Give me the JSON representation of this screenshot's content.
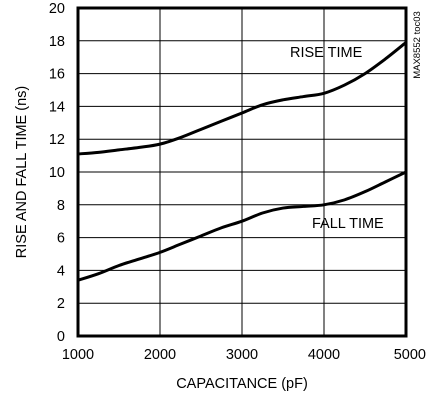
{
  "chart_data": {
    "type": "line",
    "xlabel": "CAPACITANCE (pF)",
    "ylabel": "RISE AND FALL TIME (ns)",
    "xlim": [
      1000,
      5000
    ],
    "ylim": [
      0,
      20
    ],
    "x_ticks": [
      1000,
      2000,
      3000,
      4000,
      5000
    ],
    "y_ticks": [
      0,
      2,
      4,
      6,
      8,
      10,
      12,
      14,
      16,
      18,
      20
    ],
    "grid": true,
    "side_tag": "MAX8552 toc03",
    "series": [
      {
        "name": "RISE TIME",
        "x": [
          1000,
          1250,
          1500,
          1750,
          2000,
          2250,
          2500,
          2750,
          3000,
          3250,
          3500,
          3750,
          4000,
          4250,
          4500,
          4750,
          5000
        ],
        "y": [
          11.1,
          11.2,
          11.35,
          11.5,
          11.7,
          12.1,
          12.6,
          13.1,
          13.6,
          14.1,
          14.4,
          14.6,
          14.8,
          15.3,
          16.0,
          16.9,
          17.9
        ]
      },
      {
        "name": "FALL TIME",
        "x": [
          1000,
          1250,
          1500,
          1750,
          2000,
          2250,
          2500,
          2750,
          3000,
          3250,
          3500,
          3750,
          4000,
          4250,
          4500,
          4750,
          5000
        ],
        "y": [
          3.4,
          3.8,
          4.3,
          4.7,
          5.1,
          5.6,
          6.1,
          6.6,
          7.0,
          7.5,
          7.8,
          7.9,
          8.0,
          8.3,
          8.8,
          9.4,
          10.0
        ]
      }
    ],
    "annotations": [
      {
        "text": "RISE TIME",
        "series": "RISE TIME"
      },
      {
        "text": "FALL TIME",
        "series": "FALL TIME"
      }
    ]
  }
}
